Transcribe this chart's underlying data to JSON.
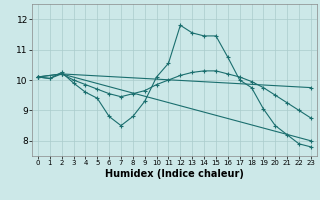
{
  "xlabel": "Humidex (Indice chaleur)",
  "bg_color": "#cce8e8",
  "grid_color": "#aacccc",
  "line_color": "#1a6e6e",
  "xlim": [
    -0.5,
    23.5
  ],
  "ylim": [
    7.5,
    12.5
  ],
  "yticks": [
    8,
    9,
    10,
    11,
    12
  ],
  "xticks": [
    0,
    1,
    2,
    3,
    4,
    5,
    6,
    7,
    8,
    9,
    10,
    11,
    12,
    13,
    14,
    15,
    16,
    17,
    18,
    19,
    20,
    21,
    22,
    23
  ],
  "lines": [
    {
      "x": [
        0,
        1,
        2,
        3,
        4,
        5,
        6,
        7,
        8,
        9,
        10,
        11,
        12,
        13,
        14,
        15,
        16,
        17,
        18,
        19,
        20,
        21,
        22,
        23
      ],
      "y": [
        10.1,
        10.05,
        10.25,
        9.9,
        9.6,
        9.4,
        8.8,
        8.5,
        8.8,
        9.3,
        10.1,
        10.55,
        11.8,
        11.55,
        11.45,
        11.45,
        10.75,
        10.0,
        9.75,
        9.05,
        8.5,
        8.2,
        7.9,
        7.8
      ]
    },
    {
      "x": [
        0,
        1,
        2,
        3,
        4,
        5,
        6,
        7,
        8,
        9,
        10,
        11,
        12,
        13,
        14,
        15,
        16,
        17,
        18,
        19,
        20,
        21,
        22,
        23
      ],
      "y": [
        10.1,
        10.05,
        10.2,
        10.0,
        9.85,
        9.7,
        9.55,
        9.45,
        9.55,
        9.65,
        9.85,
        10.0,
        10.15,
        10.25,
        10.3,
        10.3,
        10.2,
        10.1,
        9.95,
        9.75,
        9.5,
        9.25,
        9.0,
        8.75
      ]
    },
    {
      "x": [
        0,
        2,
        23
      ],
      "y": [
        10.1,
        10.2,
        9.75
      ]
    },
    {
      "x": [
        0,
        2,
        23
      ],
      "y": [
        10.1,
        10.2,
        8.0
      ]
    }
  ]
}
